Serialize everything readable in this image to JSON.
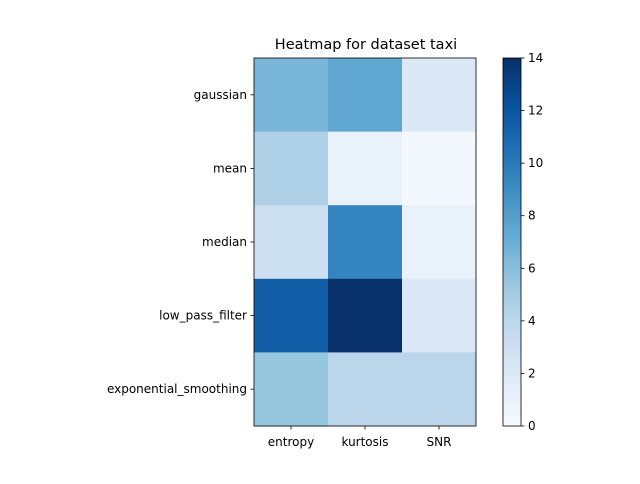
{
  "chart_data": {
    "type": "heatmap",
    "title": "Heatmap for dataset taxi",
    "rows": [
      "gaussian",
      "mean",
      "median",
      "low_pass_filter",
      "exponential_smoothing"
    ],
    "columns": [
      "entropy",
      "kurtosis",
      "SNR"
    ],
    "values": [
      [
        6.5,
        7.5,
        2.0
      ],
      [
        4.5,
        1.0,
        0.3
      ],
      [
        3.0,
        9.5,
        1.0
      ],
      [
        11.5,
        14.0,
        2.0
      ],
      [
        5.5,
        4.0,
        4.0
      ]
    ],
    "colorbar": {
      "min": 0,
      "max": 14,
      "ticks": [
        0,
        2,
        4,
        6,
        8,
        10,
        12,
        14
      ],
      "colormap": "Blues"
    }
  }
}
